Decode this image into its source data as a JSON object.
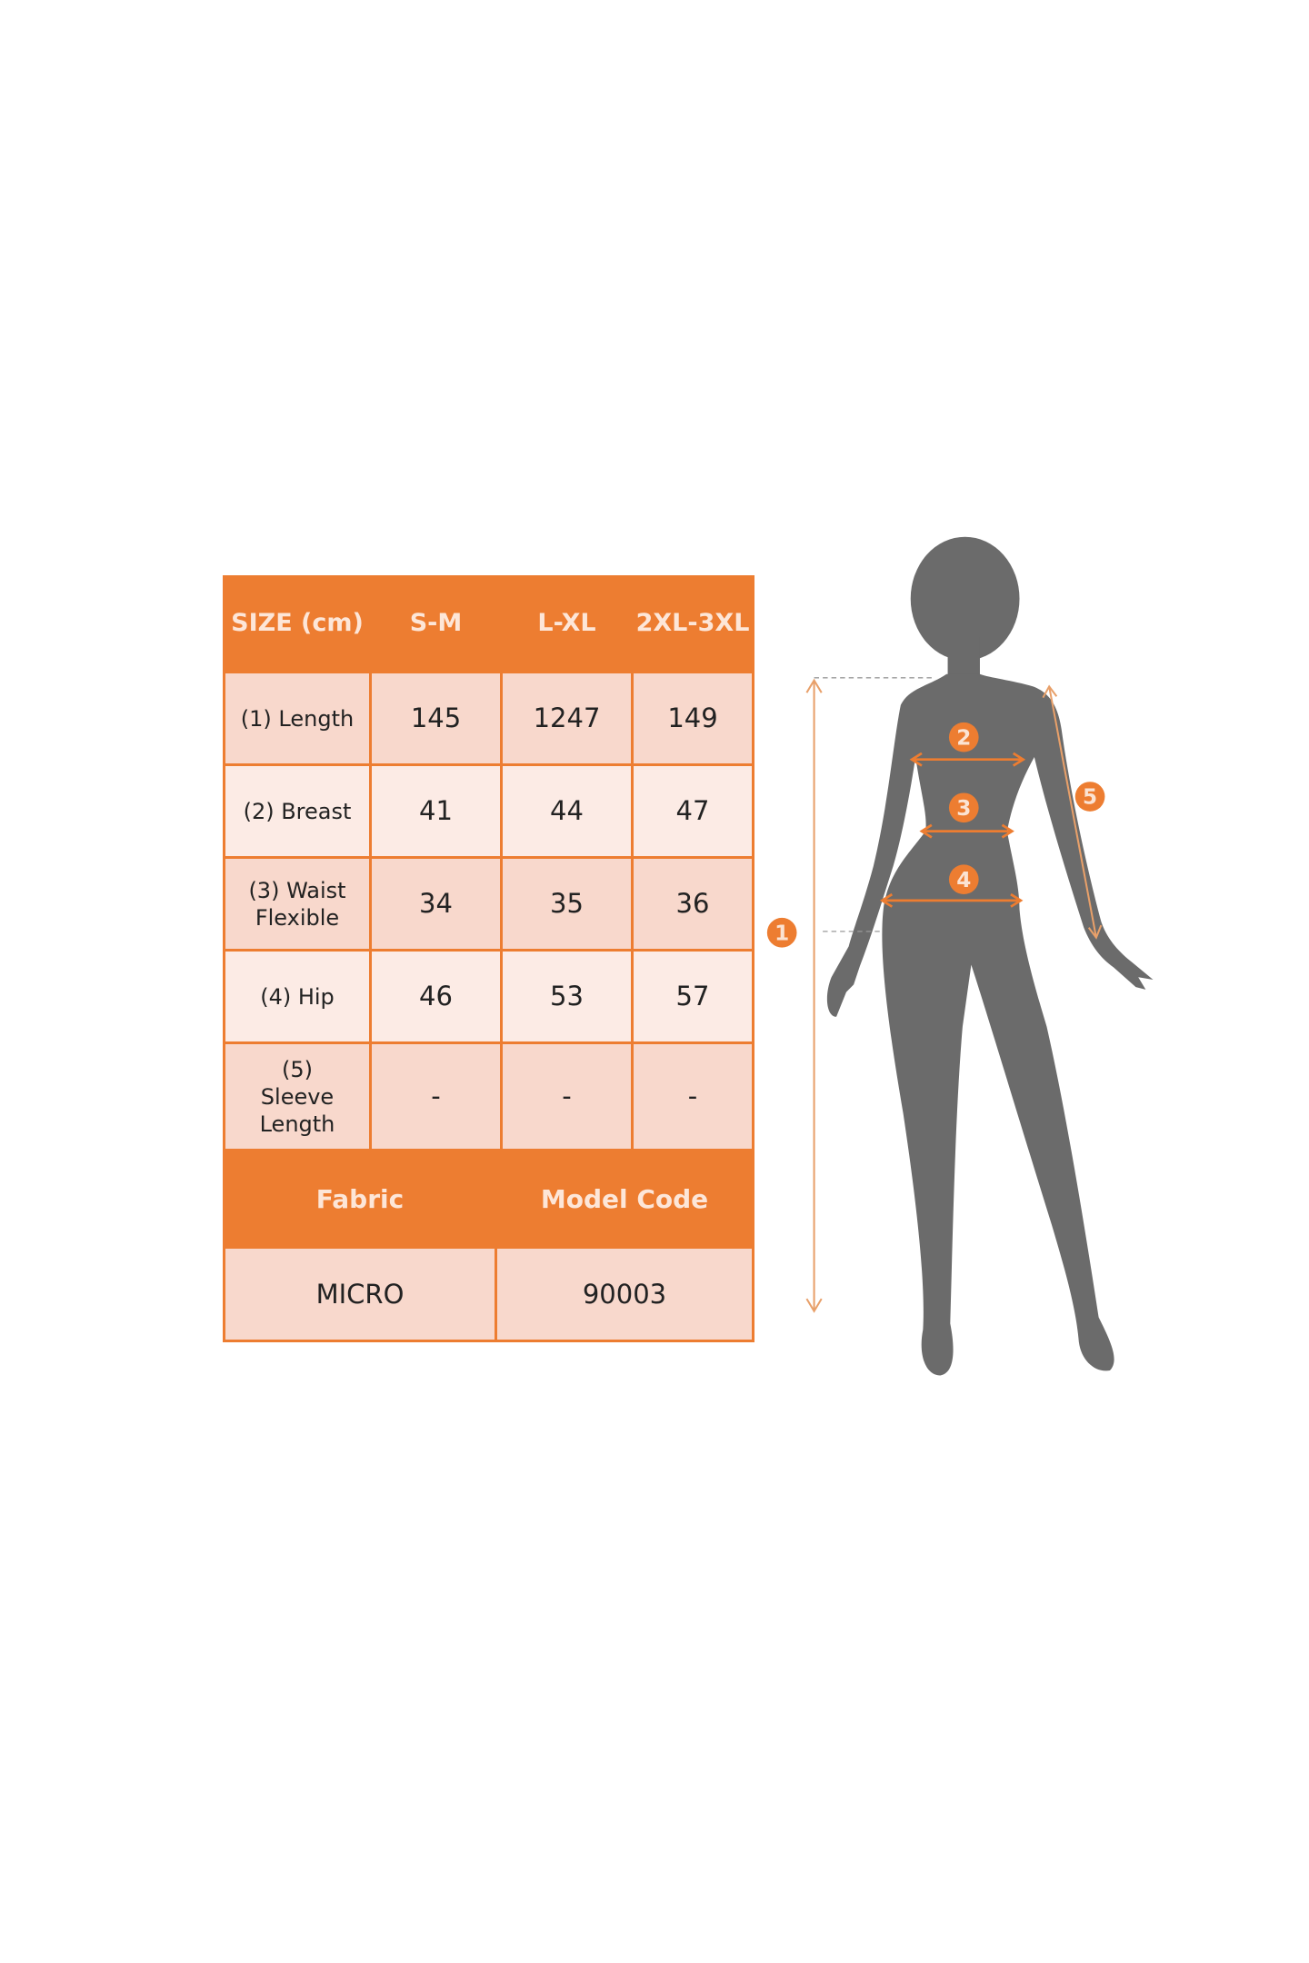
{
  "colors": {
    "accent": "#ed7d31",
    "cell_dark": "#f8d8cc",
    "cell_light": "#fcebe5",
    "silhouette": "#6b6b6b"
  },
  "size_table": {
    "header": [
      "SIZE (cm)",
      "S-M",
      "L-XL",
      "2XL-3XL"
    ],
    "rows": [
      {
        "label": "(1) Length",
        "values": [
          "145",
          "1247",
          "149"
        ]
      },
      {
        "label": "(2) Breast",
        "values": [
          "41",
          "44",
          "47"
        ]
      },
      {
        "label": "(3) Waist Flexible",
        "values": [
          "34",
          "35",
          "36"
        ]
      },
      {
        "label": "(4) Hip",
        "values": [
          "46",
          "53",
          "57"
        ]
      },
      {
        "label": "(5) Sleeve Length",
        "values": [
          "-",
          "-",
          "-"
        ]
      }
    ],
    "footer_header": [
      "Fabric",
      "Model Code"
    ],
    "footer_values": [
      "MICRO",
      "90003"
    ]
  },
  "figure": {
    "markers": [
      "1",
      "2",
      "3",
      "4",
      "5"
    ]
  }
}
